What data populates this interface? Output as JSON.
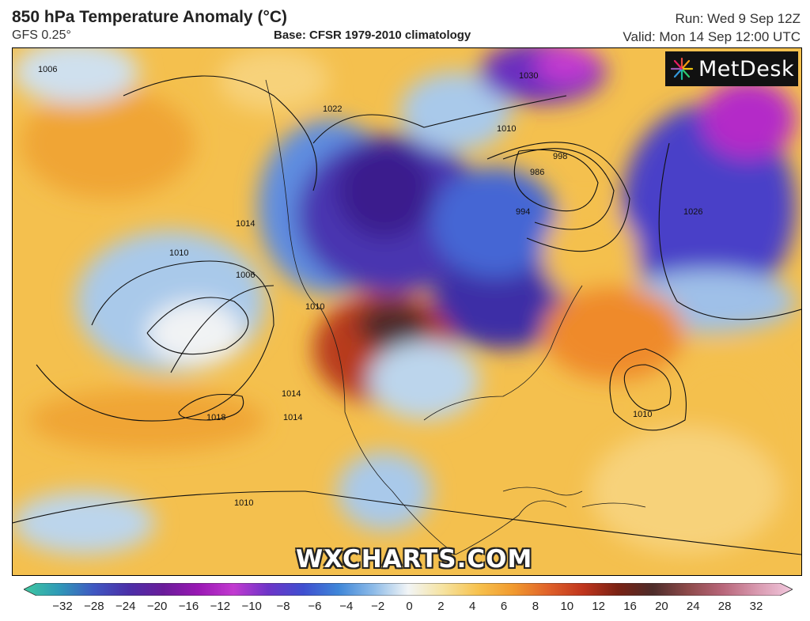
{
  "header": {
    "title": "850 hPa Temperature Anomaly (°C)",
    "model": "GFS 0.25°",
    "base": "Base: CFSR 1979-2010 climatology",
    "run": "Run: Wed 9 Sep 12Z",
    "valid": "Valid: Mon 14 Sep 12:00 UTC"
  },
  "logo": {
    "text": "MetDesk",
    "icon": "metdesk-starburst-icon"
  },
  "watermark": "WXCHARTS.COM",
  "isobar_labels": [
    "1006",
    "1010",
    "1014",
    "1018",
    "1010",
    "1014",
    "1006",
    "1010",
    "1022",
    "1010",
    "998",
    "986",
    "994",
    "1026",
    "1030",
    "1010",
    "1014"
  ],
  "colorbar": {
    "ticks": [
      "−32",
      "−28",
      "−24",
      "−20",
      "−16",
      "−12",
      "−10",
      "−8",
      "−6",
      "−4",
      "−2",
      "0",
      "2",
      "4",
      "6",
      "8",
      "10",
      "12",
      "16",
      "20",
      "24",
      "28",
      "32"
    ],
    "colors": [
      "#3ec9a0",
      "#2f9ab7",
      "#3f58c2",
      "#4b2fa8",
      "#6a1c9a",
      "#9a18b4",
      "#c23ad0",
      "#6d35c8",
      "#3f4fd0",
      "#3f86d8",
      "#8dbbe8",
      "#f2f5f6",
      "#f6e3a0",
      "#f7c24e",
      "#f19a2e",
      "#e0622a",
      "#c0351d",
      "#7a2214",
      "#4d2c2a",
      "#8d4a4a",
      "#b8667a",
      "#d99ab0",
      "#f2c8de"
    ]
  }
}
